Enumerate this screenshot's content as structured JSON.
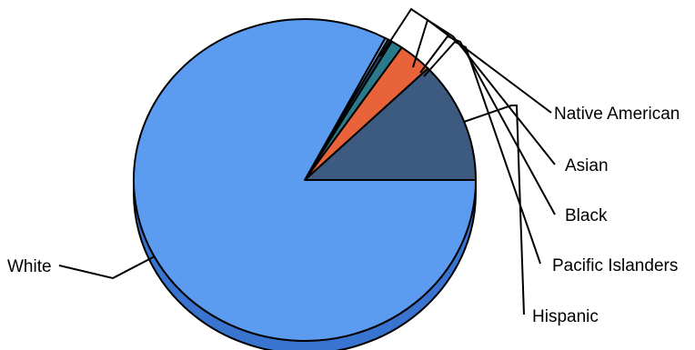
{
  "chart_data": {
    "type": "pie",
    "style": "3d",
    "categories": [
      "Hispanic",
      "Native American",
      "Asian",
      "Black",
      "Pacific Islanders",
      "White"
    ],
    "values": [
      12.2,
      3.2,
      1.1,
      0.4,
      0.3,
      82.8
    ],
    "unit": "percent (estimated)",
    "colors": {
      "Hispanic": "#3D5A80",
      "Native American": "#E8633A",
      "Asian": "#2A7A8C",
      "Black": "#1F3F66",
      "Pacific Islanders": "#8FB8E8",
      "White": "#5B9BF0"
    },
    "side_color": "#3874D0",
    "title": "",
    "legend": "none"
  },
  "labels": {
    "native_american": "Native American",
    "asian": "Asian",
    "black": "Black",
    "pacific_islanders": "Pacific Islanders",
    "hispanic": "Hispanic",
    "white": "White"
  }
}
